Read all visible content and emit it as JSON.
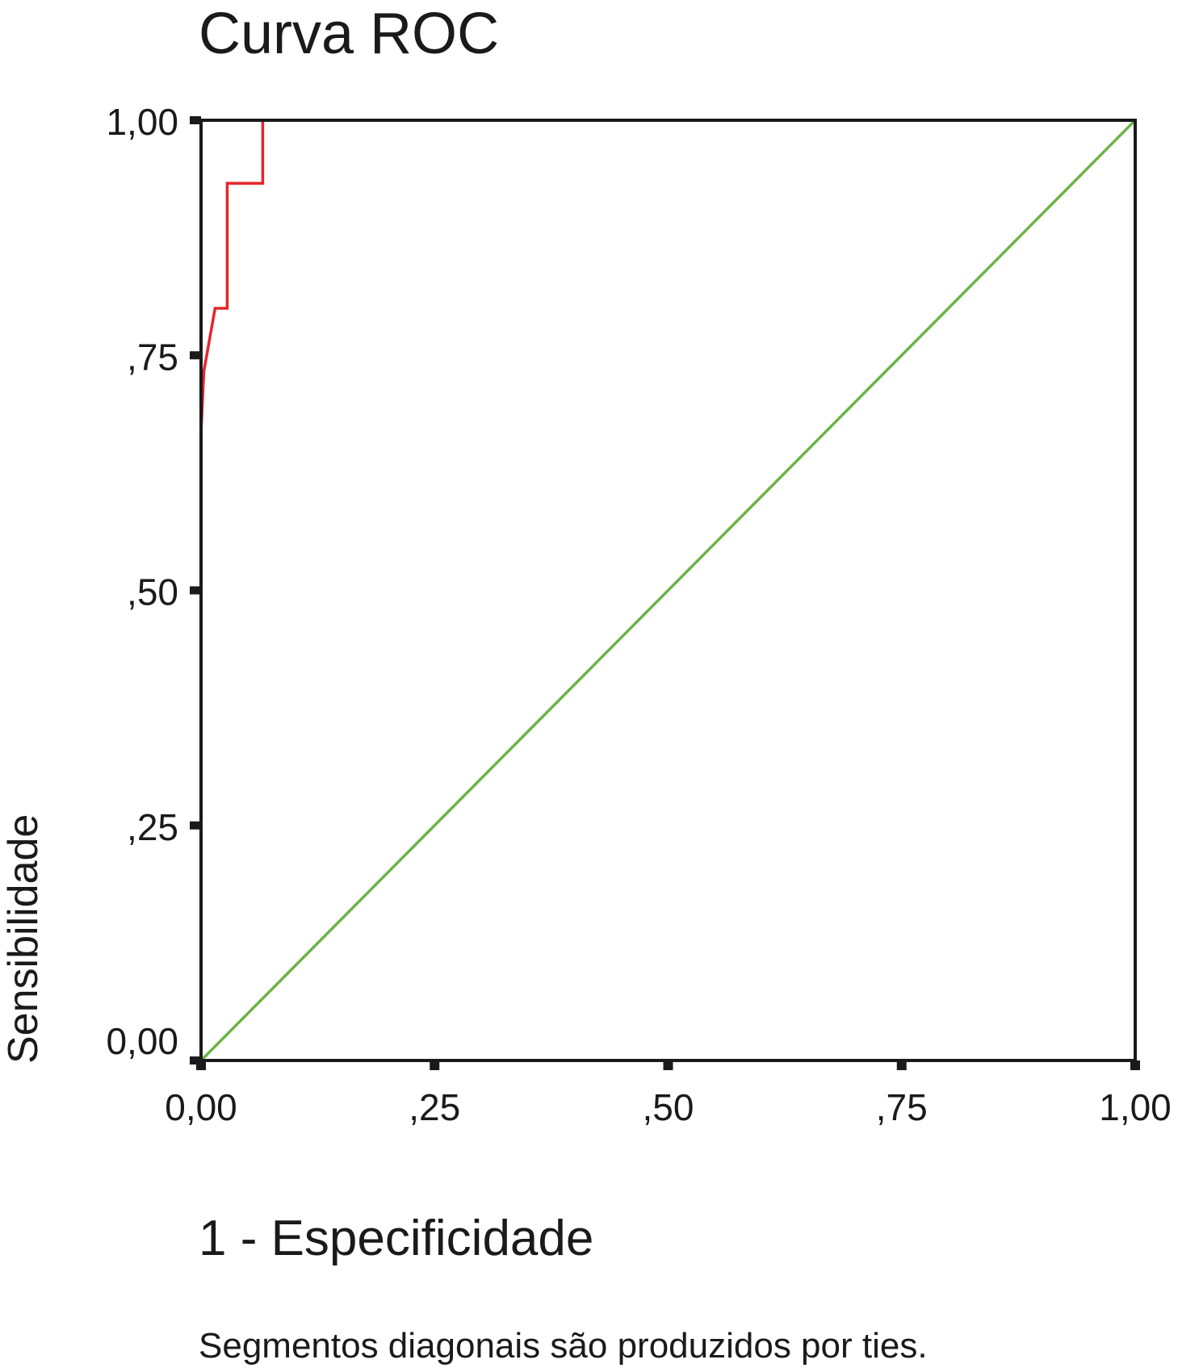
{
  "chart_data": {
    "type": "line",
    "title": "Curva ROC",
    "xlabel": "1 - Especificidade",
    "ylabel": "Sensibilidade",
    "footnote": "Segmentos diagonais são produzidos por ties.",
    "xlim": [
      0,
      1
    ],
    "ylim": [
      0,
      1
    ],
    "x_ticks": [
      {
        "value": 0.0,
        "label": "0,00"
      },
      {
        "value": 0.25,
        "label": ",25"
      },
      {
        "value": 0.5,
        "label": ",50"
      },
      {
        "value": 0.75,
        "label": ",75"
      },
      {
        "value": 1.0,
        "label": "1,00"
      }
    ],
    "y_ticks": [
      {
        "value": 0.0,
        "label": "0,00"
      },
      {
        "value": 0.25,
        "label": ",25"
      },
      {
        "value": 0.5,
        "label": ",50"
      },
      {
        "value": 0.75,
        "label": ",75"
      },
      {
        "value": 1.0,
        "label": "1,00"
      }
    ],
    "grid": false,
    "series": [
      {
        "color": "#e3262c",
        "x": [
          0.0,
          0.0,
          0.003,
          0.015,
          0.028,
          0.028,
          0.066,
          0.066,
          1.0
        ],
        "y": [
          0.0,
          0.667,
          0.733,
          0.8,
          0.8,
          0.933,
          0.933,
          1.0,
          1.0
        ]
      },
      {
        "color": "#6ab446",
        "x": [
          0.0,
          1.0
        ],
        "y": [
          0.0,
          1.0
        ]
      }
    ]
  }
}
